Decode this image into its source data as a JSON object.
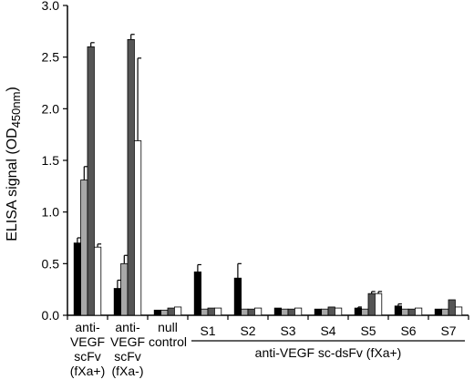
{
  "chart_data": {
    "type": "bar",
    "ylabel": "ELISA signal (OD450nm)",
    "ylabel_parts": {
      "main": "ELISA signal (OD",
      "subscript": "450nm",
      "close": ")"
    },
    "ylim": [
      0,
      3.0
    ],
    "yticks": [
      "0.0",
      "0.5",
      "1.0",
      "1.5",
      "2.0",
      "2.5",
      "3.0"
    ],
    "grid": false,
    "categories": [
      {
        "lines": [
          "anti-",
          "VEGF",
          "scFv",
          "(fXa+)"
        ]
      },
      {
        "lines": [
          "anti-",
          "VEGF",
          "scFv",
          "(fXa-)"
        ]
      },
      {
        "lines": [
          "null",
          "control"
        ]
      },
      {
        "lines": [
          "S1"
        ]
      },
      {
        "lines": [
          "S2"
        ]
      },
      {
        "lines": [
          "S3"
        ]
      },
      {
        "lines": [
          "S4"
        ]
      },
      {
        "lines": [
          "S5"
        ]
      },
      {
        "lines": [
          "S6"
        ]
      },
      {
        "lines": [
          "S7"
        ]
      }
    ],
    "group_label": "anti-VEGF sc-dsFv (fXa+)",
    "series": [
      {
        "color": "#000000",
        "values": [
          0.7,
          0.26,
          0.05,
          0.42,
          0.36,
          0.07,
          0.06,
          0.07,
          0.09,
          0.06
        ],
        "errors": [
          0.05,
          0.08,
          0.0,
          0.07,
          0.14,
          0.0,
          0.0,
          0.01,
          0.02,
          0.0
        ]
      },
      {
        "color": "#a8a8a8",
        "values": [
          1.31,
          0.5,
          0.05,
          0.06,
          0.06,
          0.06,
          0.06,
          0.06,
          0.06,
          0.06
        ],
        "errors": [
          0.13,
          0.08,
          0.0,
          0.0,
          0.0,
          0.0,
          0.0,
          0.0,
          0.0,
          0.0
        ]
      },
      {
        "color": "#555555",
        "values": [
          2.6,
          2.67,
          0.07,
          0.07,
          0.06,
          0.06,
          0.08,
          0.21,
          0.06,
          0.15
        ],
        "errors": [
          0.04,
          0.05,
          0.0,
          0.0,
          0.0,
          0.0,
          0.0,
          0.02,
          0.0,
          0.0
        ]
      },
      {
        "color": "#ffffff",
        "values": [
          0.66,
          1.69,
          0.08,
          0.07,
          0.07,
          0.07,
          0.07,
          0.21,
          0.07,
          0.08
        ],
        "errors": [
          0.03,
          0.8,
          0.0,
          0.0,
          0.0,
          0.0,
          0.0,
          0.02,
          0.0,
          0.0
        ]
      }
    ]
  }
}
